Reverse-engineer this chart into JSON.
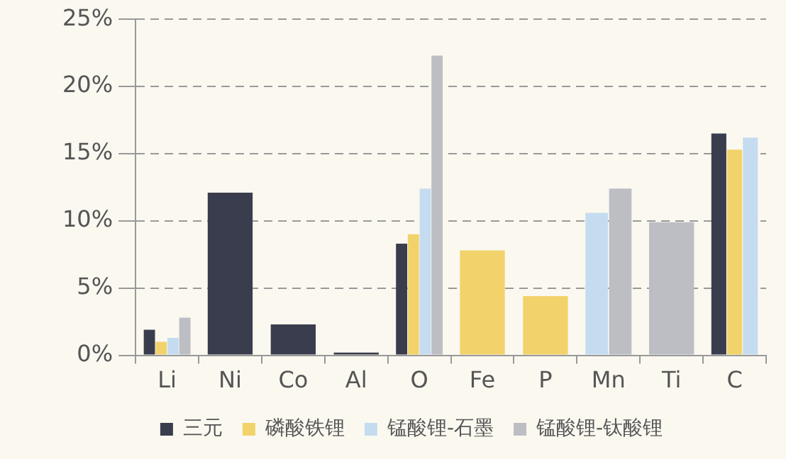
{
  "chart_data": {
    "type": "bar",
    "categories": [
      "Li",
      "Ni",
      "Co",
      "Al",
      "O",
      "Fe",
      "P",
      "Mn",
      "Ti",
      "C"
    ],
    "series": [
      {
        "name": "三元",
        "color": "#3a3d4d",
        "values": [
          1.9,
          12.1,
          2.3,
          0.2,
          8.3,
          null,
          null,
          null,
          null,
          16.5
        ]
      },
      {
        "name": "磷酸铁锂",
        "color": "#f2d36b",
        "values": [
          1.0,
          null,
          null,
          null,
          9.0,
          7.8,
          4.4,
          null,
          null,
          15.3
        ]
      },
      {
        "name": "锰酸锂-石墨",
        "color": "#c5dcf0",
        "values": [
          1.3,
          null,
          null,
          null,
          12.4,
          null,
          null,
          10.6,
          null,
          16.2
        ]
      },
      {
        "name": "锰酸锂-钛酸锂",
        "color": "#bcbec4",
        "values": [
          2.8,
          null,
          null,
          null,
          22.3,
          null,
          null,
          12.4,
          9.9,
          null
        ]
      }
    ],
    "ylim": [
      0,
      25
    ],
    "yticks": [
      {
        "value": 0,
        "label": "0%"
      },
      {
        "value": 5,
        "label": "5%"
      },
      {
        "value": 10,
        "label": "10%"
      },
      {
        "value": 15,
        "label": "15%"
      },
      {
        "value": 20,
        "label": "20%"
      },
      {
        "value": 25,
        "label": "25%"
      }
    ],
    "grid": "y",
    "line_style": "dashed",
    "legend": "bottom"
  }
}
